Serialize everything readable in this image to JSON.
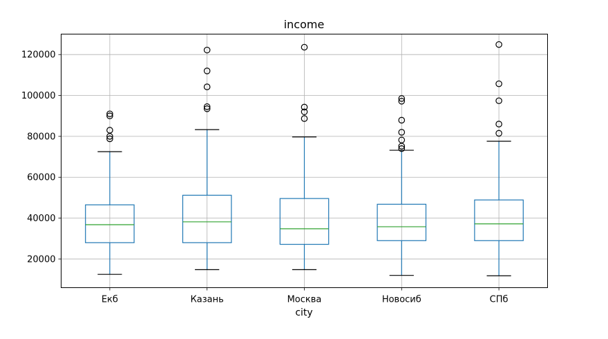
{
  "chart_data": {
    "type": "boxplot",
    "title": "income",
    "xlabel": "city",
    "ylabel": "",
    "categories": [
      "Екб",
      "Казань",
      "Москва",
      "Новосиб",
      "СПб"
    ],
    "ylim": [
      6000,
      130000
    ],
    "yticks": [
      20000,
      40000,
      60000,
      80000,
      100000,
      120000
    ],
    "ytick_labels": [
      "20000",
      "40000",
      "60000",
      "80000",
      "100000",
      "120000"
    ],
    "grid": true,
    "colors": {
      "box": "#1f77b4",
      "median": "#2ca02c",
      "whisker": "#1f77b4",
      "cap": "#000000",
      "outlier": "#000000",
      "grid": "#b0b0b0"
    },
    "boxes": [
      {
        "category": "Екб",
        "whisker_low": 12500,
        "q1": 28000,
        "median": 36800,
        "q3": 46500,
        "whisker_high": 72500,
        "outliers": [
          78800,
          80000,
          83000,
          90000,
          91000
        ]
      },
      {
        "category": "Казань",
        "whisker_low": 14800,
        "q1": 28000,
        "median": 38200,
        "q3": 51200,
        "whisker_high": 83300,
        "outliers": [
          93500,
          94500,
          104200,
          112000,
          122200
        ]
      },
      {
        "category": "Москва",
        "whisker_low": 14800,
        "q1": 27200,
        "median": 34800,
        "q3": 49600,
        "whisker_high": 79700,
        "outliers": [
          88700,
          92000,
          94300,
          123600
        ]
      },
      {
        "category": "Новосиб",
        "whisker_low": 12000,
        "q1": 29000,
        "median": 35800,
        "q3": 46800,
        "whisker_high": 73200,
        "outliers": [
          74000,
          75200,
          78200,
          82000,
          87900,
          97200,
          98500
        ]
      },
      {
        "category": "СПб",
        "whisker_low": 11800,
        "q1": 29000,
        "median": 37200,
        "q3": 48900,
        "whisker_high": 77600,
        "outliers": [
          81500,
          86000,
          97400,
          105700,
          124900
        ]
      }
    ]
  }
}
